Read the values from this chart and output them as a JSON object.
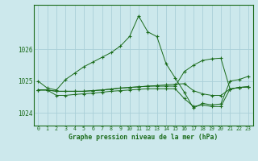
{
  "title": "Graphe pression niveau de la mer (hPa)",
  "bg_color": "#cce8ec",
  "grid_color": "#aad0d8",
  "line_color": "#1a6b1a",
  "x_labels": [
    "0",
    "1",
    "2",
    "3",
    "4",
    "5",
    "6",
    "7",
    "8",
    "9",
    "10",
    "11",
    "12",
    "13",
    "14",
    "15",
    "16",
    "17",
    "18",
    "19",
    "20",
    "21",
    "22",
    "23"
  ],
  "ylim": [
    1023.6,
    1027.4
  ],
  "yticks": [
    1024,
    1025,
    1026
  ],
  "series": [
    [
      1025.0,
      1024.78,
      1024.72,
      1025.05,
      1025.25,
      1025.45,
      1025.6,
      1025.75,
      1025.9,
      1026.1,
      1026.4,
      1027.05,
      1026.55,
      1026.4,
      1025.55,
      1025.1,
      1024.65,
      1024.15,
      1024.3,
      1024.25,
      1024.28,
      1025.0,
      1025.05,
      1025.15
    ],
    [
      1024.72,
      1024.72,
      1024.68,
      1024.68,
      1024.68,
      1024.68,
      1024.7,
      1024.72,
      1024.75,
      1024.78,
      1024.8,
      1024.82,
      1024.84,
      1024.86,
      1024.88,
      1024.9,
      1024.92,
      1024.7,
      1024.6,
      1024.55,
      1024.55,
      1024.75,
      1024.8,
      1024.82
    ],
    [
      1024.72,
      1024.72,
      1024.68,
      1024.68,
      1024.68,
      1024.68,
      1024.7,
      1024.72,
      1024.75,
      1024.78,
      1024.8,
      1024.82,
      1024.84,
      1024.84,
      1024.84,
      1024.84,
      1025.3,
      1025.5,
      1025.65,
      1025.7,
      1025.72,
      1024.75,
      1024.8,
      1024.82
    ],
    [
      1024.72,
      1024.72,
      1024.55,
      1024.55,
      1024.58,
      1024.6,
      1024.62,
      1024.65,
      1024.68,
      1024.7,
      1024.72,
      1024.74,
      1024.76,
      1024.76,
      1024.76,
      1024.76,
      1024.45,
      1024.2,
      1024.25,
      1024.2,
      1024.2,
      1024.75,
      1024.8,
      1024.82
    ]
  ]
}
